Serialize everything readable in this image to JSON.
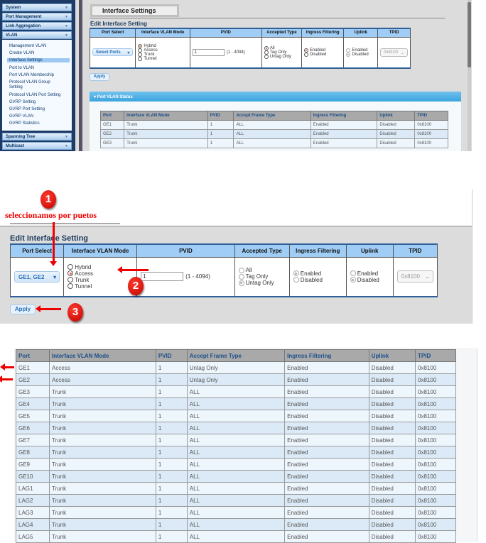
{
  "sidebar": {
    "menus": [
      {
        "label": "System"
      },
      {
        "label": "Port Management"
      },
      {
        "label": "Link Aggregation"
      },
      {
        "label": "VLAN"
      },
      {
        "label": "Spanning Tree"
      },
      {
        "label": "Multicast"
      }
    ],
    "vlan_items": [
      {
        "label": "Management VLAN"
      },
      {
        "label": "Create VLAN"
      },
      {
        "label": "Interface Settings",
        "selected": true
      },
      {
        "label": "Port to VLAN"
      },
      {
        "label": "Port VLAN Membership"
      },
      {
        "label": "Protocol VLAN Group Setting"
      },
      {
        "label": "Protocol VLAN Port Setting"
      },
      {
        "label": "GVRP Setting"
      },
      {
        "label": "GVRP Port Setting"
      },
      {
        "label": "GVRP VLAN"
      },
      {
        "label": "GVRP Statistics"
      }
    ]
  },
  "page_title": "Interface Settings",
  "edit": {
    "title": "Edit Interface Setting",
    "headers": [
      "Port Select",
      "Interface VLAN Mode",
      "PVID",
      "Accepted Type",
      "Ingress Filtering",
      "Uplink",
      "TPID"
    ],
    "modes": [
      "Hybrid",
      "Access",
      "Trunk",
      "Tunnel"
    ],
    "pvid_range": "(1 - 4094)",
    "accepted": [
      "All",
      "Tag Only",
      "Untag Only"
    ],
    "ingress": [
      "Enabled",
      "Disabled"
    ],
    "uplink": [
      "Enabled",
      "Disabled"
    ],
    "tpid": "0x8100",
    "apply": "Apply"
  },
  "screen1": {
    "port_select": "Select Ports",
    "mode": "Hybrid",
    "pvid": "1",
    "accepted": "All",
    "ingress": "Enabled",
    "uplink": "Disabled"
  },
  "status_panel": {
    "title": "Port VLAN Status"
  },
  "status_headers": [
    "Port",
    "Interface VLAN Mode",
    "PVID",
    "Accept Frame Type",
    "Ingress Filtering",
    "Uplink",
    "TPID"
  ],
  "status_rows_before": [
    [
      "GE1",
      "Trunk",
      "1",
      "ALL",
      "Enabled",
      "Disabled",
      "0x8100"
    ],
    [
      "GE2",
      "Trunk",
      "1",
      "ALL",
      "Enabled",
      "Disabled",
      "0x8100"
    ],
    [
      "GE3",
      "Trunk",
      "1",
      "ALL",
      "Enabled",
      "Disabled",
      "0x8100"
    ]
  ],
  "screen2": {
    "annotation": "seleccionamos por puetos",
    "step1": "1",
    "step2": "2",
    "step3": "3",
    "port_select": "GE1, GE2",
    "mode": "Access",
    "pvid": "1",
    "accepted": "Untag Only",
    "ingress": "Enabled",
    "uplink": "Disabled"
  },
  "status_rows_after": [
    [
      "GE1",
      "Access",
      "1",
      "Untag Only",
      "Enabled",
      "Disabled",
      "0x8100"
    ],
    [
      "GE2",
      "Access",
      "1",
      "Untag Only",
      "Enabled",
      "Disabled",
      "0x8100"
    ],
    [
      "GE3",
      "Trunk",
      "1",
      "ALL",
      "Enabled",
      "Disabled",
      "0x8100"
    ],
    [
      "GE4",
      "Trunk",
      "1",
      "ALL",
      "Enabled",
      "Disabled",
      "0x8100"
    ],
    [
      "GE5",
      "Trunk",
      "1",
      "ALL",
      "Enabled",
      "Disabled",
      "0x8100"
    ],
    [
      "GE6",
      "Trunk",
      "1",
      "ALL",
      "Enabled",
      "Disabled",
      "0x8100"
    ],
    [
      "GE7",
      "Trunk",
      "1",
      "ALL",
      "Enabled",
      "Disabled",
      "0x8100"
    ],
    [
      "GE8",
      "Trunk",
      "1",
      "ALL",
      "Enabled",
      "Disabled",
      "0x8100"
    ],
    [
      "GE9",
      "Trunk",
      "1",
      "ALL",
      "Enabled",
      "Disabled",
      "0x8100"
    ],
    [
      "GE10",
      "Trunk",
      "1",
      "ALL",
      "Enabled",
      "Disabled",
      "0x8100"
    ],
    [
      "LAG1",
      "Trunk",
      "1",
      "ALL",
      "Enabled",
      "Disabled",
      "0x8100"
    ],
    [
      "LAG2",
      "Trunk",
      "1",
      "ALL",
      "Enabled",
      "Disabled",
      "0x8100"
    ],
    [
      "LAG3",
      "Trunk",
      "1",
      "ALL",
      "Enabled",
      "Disabled",
      "0x8100"
    ],
    [
      "LAG4",
      "Trunk",
      "1",
      "ALL",
      "Enabled",
      "Disabled",
      "0x8100"
    ],
    [
      "LAG5",
      "Trunk",
      "1",
      "ALL",
      "Enabled",
      "Disabled",
      "0x8100"
    ]
  ],
  "colors": {
    "accent": "#9fcdf5",
    "sidebar": "#1c3b66",
    "annotation": "#e00000"
  }
}
